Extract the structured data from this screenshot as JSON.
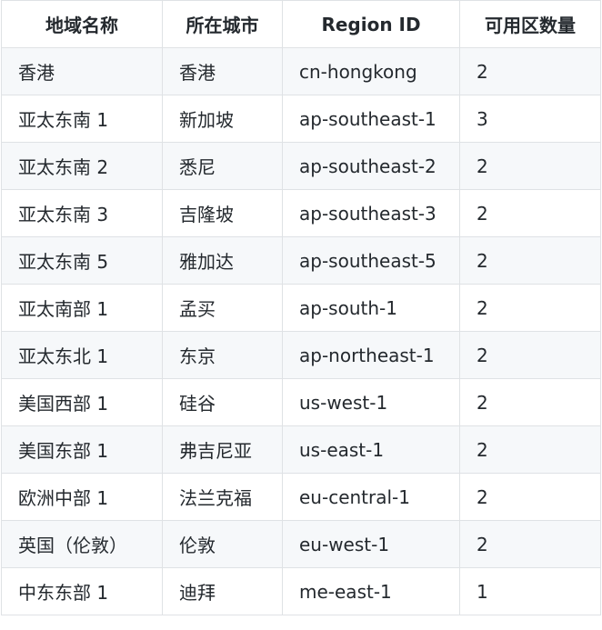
{
  "table": {
    "headers": [
      "地域名称",
      "所在城市",
      "Region ID",
      "可用区数量"
    ],
    "rows": [
      [
        "香港",
        "香港",
        "cn-hongkong",
        "2"
      ],
      [
        "亚太东南 1",
        "新加坡",
        "ap-southeast-1",
        "3"
      ],
      [
        "亚太东南 2",
        "悉尼",
        "ap-southeast-2",
        "2"
      ],
      [
        "亚太东南 3",
        "吉隆坡",
        "ap-southeast-3",
        "2"
      ],
      [
        "亚太东南 5",
        "雅加达",
        "ap-southeast-5",
        "2"
      ],
      [
        "亚太南部 1",
        "孟买",
        "ap-south-1",
        "2"
      ],
      [
        "亚太东北 1",
        "东京",
        "ap-northeast-1",
        "2"
      ],
      [
        "美国西部 1",
        "硅谷",
        "us-west-1",
        "2"
      ],
      [
        "美国东部 1",
        "弗吉尼亚",
        "us-east-1",
        "2"
      ],
      [
        "欧洲中部 1",
        "法兰克福",
        "eu-central-1",
        "2"
      ],
      [
        "英国（伦敦）",
        "伦敦",
        "eu-west-1",
        "2"
      ],
      [
        "中东东部 1",
        "迪拜",
        "me-east-1",
        "1"
      ]
    ]
  }
}
